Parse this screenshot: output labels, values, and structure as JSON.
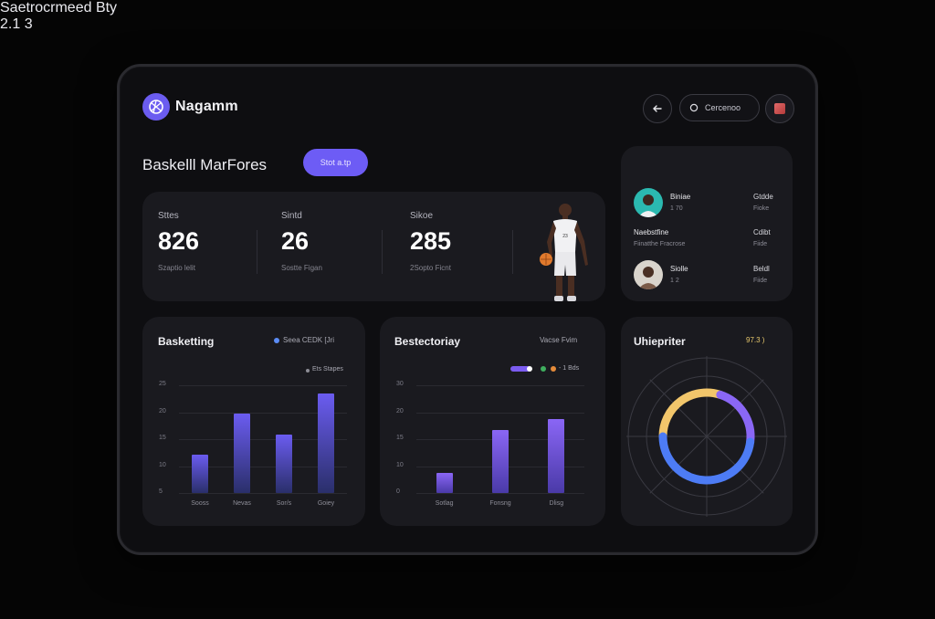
{
  "app": {
    "name": "Nagamm"
  },
  "header": {
    "search_label": "Cercenoo",
    "page_title": "Baskelll MarFores",
    "primary_button": "Stot a.tp"
  },
  "stats": [
    {
      "label": "Sttes",
      "value": "826",
      "sub": "Szaptio lelit"
    },
    {
      "label": "Sintd",
      "value": "26",
      "sub": "Sostte Figan"
    },
    {
      "label": "Sikoe",
      "value": "285",
      "sub": "2Sopto Ficnt"
    }
  ],
  "leaders": {
    "title": "Saetrocrmeed Bty",
    "count": "2.1 3",
    "rows": [
      {
        "name": "Biniae",
        "sub": "1 70",
        "right": "Gtdde",
        "right_sub": "Fioke"
      },
      {
        "name": "Naebstfine",
        "sub": "Fiinatthe Fracrose",
        "right": "Cdibt",
        "right_sub": "Fiide"
      },
      {
        "name": "Siolle",
        "sub": "1 2",
        "right": "Beldl",
        "right_sub": "Fiide"
      }
    ]
  },
  "chart1": {
    "title": "Basketting",
    "legend_top": "Seea CEDK [Jri",
    "legend_sub": "Ets Stapes",
    "colors": {
      "bar": "#6b5cf0",
      "legend_dot": "#5b8cf5"
    }
  },
  "chart2": {
    "title": "Bestectoriay",
    "legend_top": "Vacse Fvim",
    "legend_sub": "- 1 Bds",
    "colors": {
      "bar": "#7b5cf0"
    }
  },
  "chart3": {
    "title": "Uhiepriter",
    "value": "97.3 )"
  },
  "chart_data": [
    {
      "type": "bar",
      "title": "Basketting",
      "categories": [
        "Sooss",
        "Nevas",
        "Sor/s",
        "Goiey"
      ],
      "values": [
        9,
        18.5,
        13.5,
        23
      ],
      "yticks": [
        "25",
        "20",
        "15",
        "10",
        "5"
      ],
      "ylim": [
        0,
        25
      ]
    },
    {
      "type": "bar",
      "title": "Bestectoriay",
      "categories": [
        "Sotlag",
        "Fonsng",
        "Dlisg"
      ],
      "values": [
        5.5,
        17.5,
        20.5
      ],
      "yticks": [
        "30",
        "20",
        "15",
        "10",
        "0"
      ],
      "ylim": [
        0,
        30
      ]
    },
    {
      "type": "pie",
      "title": "Uhiepriter",
      "values": [
        30,
        22,
        48
      ],
      "colors": [
        "#f2c66b",
        "#8a67f5",
        "#4d7cf5"
      ]
    }
  ]
}
